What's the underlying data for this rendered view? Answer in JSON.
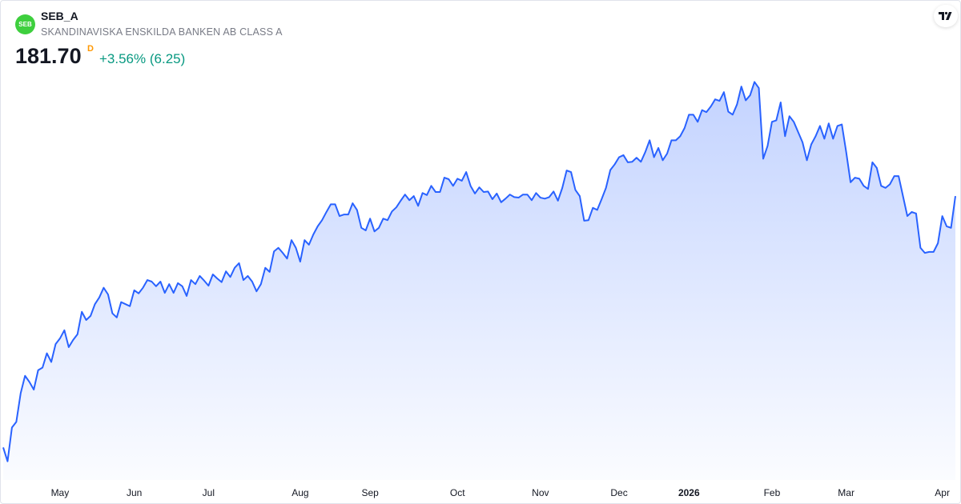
{
  "header": {
    "logo": "SEB",
    "symbol": "SEB_A",
    "name": "SKANDINAVISKA ENSKILDA BANKEN AB CLASS A",
    "price": "181.70",
    "interval": "D",
    "change": "+3.56% (6.25)"
  },
  "chart_data": {
    "type": "area",
    "color": "#2962ff",
    "values": [
      132.6,
      129.9,
      136.5,
      137.6,
      143.2,
      146.6,
      145.4,
      143.9,
      147.7,
      148.2,
      151.0,
      149.3,
      152.8,
      153.9,
      155.5,
      152.2,
      153.6,
      154.7,
      159.1,
      157.5,
      158.3,
      160.6,
      161.9,
      163.8,
      162.5,
      158.8,
      158.0,
      161.0,
      160.6,
      160.2,
      163.3,
      162.7,
      163.8,
      165.3,
      165.0,
      164.1,
      165.0,
      162.8,
      164.5,
      162.8,
      164.7,
      164.1,
      162.2,
      165.3,
      164.5,
      166.1,
      165.2,
      164.2,
      166.4,
      165.6,
      164.9,
      167.0,
      165.9,
      167.7,
      168.6,
      165.3,
      166.1,
      165.0,
      163.1,
      164.5,
      167.7,
      166.9,
      170.9,
      171.6,
      170.6,
      169.5,
      173.1,
      171.6,
      168.9,
      173.1,
      172.2,
      174.2,
      175.8,
      177.0,
      178.6,
      180.1,
      180.1,
      177.8,
      178.1,
      178.1,
      180.3,
      179.0,
      175.5,
      175.0,
      177.3,
      174.8,
      175.5,
      177.3,
      177.0,
      178.7,
      179.5,
      180.8,
      182.0,
      180.9,
      181.7,
      179.8,
      182.3,
      181.9,
      183.7,
      182.5,
      182.5,
      185.3,
      185.0,
      183.7,
      185.1,
      184.7,
      186.4,
      183.7,
      182.2,
      183.4,
      182.5,
      182.6,
      181.1,
      182.2,
      180.5,
      181.2,
      182.0,
      181.5,
      181.4,
      182.0,
      182.0,
      180.9,
      182.3,
      181.4,
      181.2,
      181.5,
      182.6,
      180.8,
      183.3,
      186.7,
      186.4,
      182.9,
      181.7,
      176.9,
      177.0,
      179.4,
      179.0,
      181.1,
      183.3,
      186.8,
      187.9,
      189.3,
      189.7,
      188.3,
      188.4,
      189.2,
      188.4,
      190.3,
      192.6,
      189.3,
      191.1,
      188.7,
      190.0,
      192.6,
      192.6,
      193.4,
      195.0,
      197.6,
      197.6,
      196.2,
      198.5,
      198.1,
      199.2,
      200.6,
      200.3,
      202.0,
      198.2,
      197.6,
      199.6,
      203.1,
      200.4,
      201.4,
      204.0,
      202.8,
      189.0,
      191.5,
      196.2,
      196.5,
      200.0,
      193.4,
      197.3,
      196.2,
      194.2,
      192.2,
      188.7,
      191.8,
      193.4,
      195.4,
      192.9,
      195.9,
      192.9,
      195.4,
      195.7,
      190.3,
      184.4,
      185.3,
      185.1,
      183.7,
      183.1,
      188.3,
      187.2,
      183.7,
      183.3,
      184.0,
      185.6,
      185.6,
      181.7,
      177.8,
      178.6,
      178.3,
      171.6,
      170.6,
      170.8,
      170.8,
      172.5,
      177.8,
      175.8,
      175.5,
      181.7
    ],
    "xlim": [
      0,
      218
    ],
    "xticks": [
      {
        "value": 13,
        "label": "May"
      },
      {
        "value": 30,
        "label": "Jun"
      },
      {
        "value": 47,
        "label": "Jul"
      },
      {
        "value": 68,
        "label": "Aug"
      },
      {
        "value": 84,
        "label": "Sep"
      },
      {
        "value": 104,
        "label": "Oct"
      },
      {
        "value": 123,
        "label": "Nov"
      },
      {
        "value": 141,
        "label": "Dec"
      },
      {
        "value": 157,
        "label": "2026"
      },
      {
        "value": 176,
        "label": "Feb"
      },
      {
        "value": 193,
        "label": "Mar"
      },
      {
        "value": 215,
        "label": "Apr"
      }
    ],
    "ylim": [
      125,
      210
    ]
  }
}
